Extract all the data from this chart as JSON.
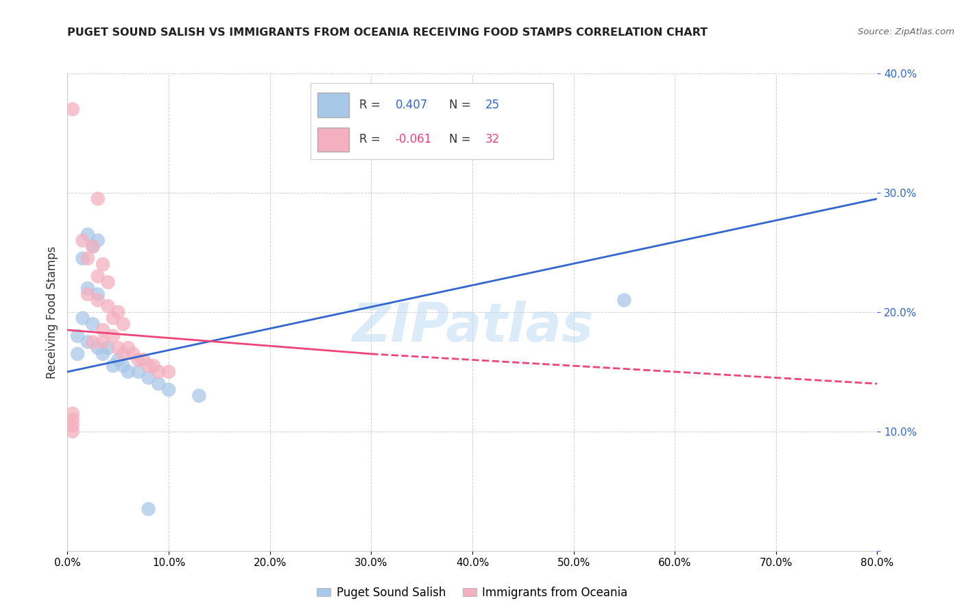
{
  "title": "PUGET SOUND SALISH VS IMMIGRANTS FROM OCEANIA RECEIVING FOOD STAMPS CORRELATION CHART",
  "source": "Source: ZipAtlas.com",
  "ylabel": "Receiving Food Stamps",
  "x_ticks": [
    0.0,
    10.0,
    20.0,
    30.0,
    40.0,
    50.0,
    60.0,
    70.0,
    80.0
  ],
  "y_ticks": [
    0.0,
    10.0,
    20.0,
    30.0,
    40.0
  ],
  "xlim": [
    0.0,
    80.0
  ],
  "ylim": [
    0.0,
    40.0
  ],
  "legend_labels": [
    "Puget Sound Salish",
    "Immigrants from Oceania"
  ],
  "R_blue": 0.407,
  "N_blue": 25,
  "R_pink": -0.061,
  "N_pink": 32,
  "blue_color": "#a8c8e8",
  "pink_color": "#f4b0c0",
  "blue_line_color": "#3366cc",
  "pink_line_color": "#ee4477",
  "watermark": "ZIPatlas",
  "blue_scatter": [
    [
      1.0,
      16.5
    ],
    [
      2.0,
      26.5
    ],
    [
      3.0,
      26.0
    ],
    [
      2.5,
      25.5
    ],
    [
      1.5,
      24.5
    ],
    [
      2.0,
      22.0
    ],
    [
      3.0,
      21.5
    ],
    [
      1.5,
      19.5
    ],
    [
      2.5,
      19.0
    ],
    [
      1.0,
      18.0
    ],
    [
      2.0,
      17.5
    ],
    [
      3.0,
      17.0
    ],
    [
      4.0,
      17.0
    ],
    [
      3.5,
      16.5
    ],
    [
      5.0,
      16.0
    ],
    [
      4.5,
      15.5
    ],
    [
      5.5,
      15.5
    ],
    [
      6.0,
      15.0
    ],
    [
      7.0,
      15.0
    ],
    [
      8.0,
      14.5
    ],
    [
      9.0,
      14.0
    ],
    [
      10.0,
      13.5
    ],
    [
      13.0,
      13.0
    ],
    [
      55.0,
      21.0
    ],
    [
      8.0,
      3.5
    ]
  ],
  "pink_scatter": [
    [
      0.5,
      37.0
    ],
    [
      3.0,
      29.5
    ],
    [
      1.5,
      26.0
    ],
    [
      2.5,
      25.5
    ],
    [
      2.0,
      24.5
    ],
    [
      3.5,
      24.0
    ],
    [
      3.0,
      23.0
    ],
    [
      4.0,
      22.5
    ],
    [
      2.0,
      21.5
    ],
    [
      3.0,
      21.0
    ],
    [
      4.0,
      20.5
    ],
    [
      5.0,
      20.0
    ],
    [
      4.5,
      19.5
    ],
    [
      5.5,
      19.0
    ],
    [
      3.5,
      18.5
    ],
    [
      4.5,
      18.0
    ],
    [
      2.5,
      17.5
    ],
    [
      3.5,
      17.5
    ],
    [
      5.0,
      17.0
    ],
    [
      6.0,
      17.0
    ],
    [
      6.5,
      16.5
    ],
    [
      5.5,
      16.5
    ],
    [
      7.0,
      16.0
    ],
    [
      7.5,
      16.0
    ],
    [
      8.0,
      15.5
    ],
    [
      8.5,
      15.5
    ],
    [
      9.0,
      15.0
    ],
    [
      10.0,
      15.0
    ],
    [
      0.5,
      11.5
    ],
    [
      0.5,
      11.0
    ],
    [
      0.5,
      10.5
    ],
    [
      0.5,
      10.0
    ]
  ],
  "blue_line": {
    "x_start": 0,
    "y_start": 15.0,
    "x_end": 80,
    "y_end": 29.5
  },
  "pink_line_solid": {
    "x_start": 0,
    "y_start": 18.5,
    "x_end": 30,
    "y_end": 16.5
  },
  "pink_line_dashed": {
    "x_start": 30,
    "y_start": 16.5,
    "x_end": 80,
    "y_end": 14.0
  },
  "background_color": "#ffffff",
  "grid_color": "#cccccc"
}
